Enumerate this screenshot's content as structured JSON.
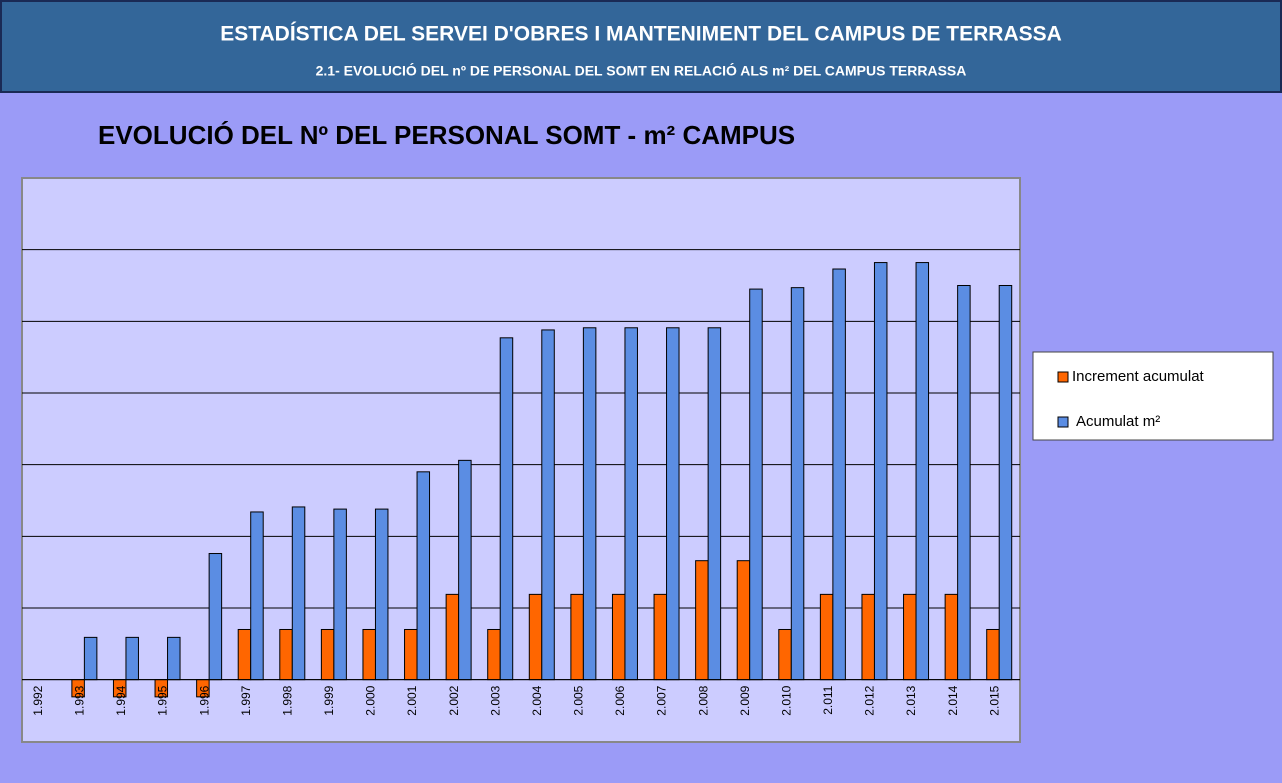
{
  "header": {
    "title": "ESTADÍSTICA DEL SERVEI D'OBRES I MANTENIMENT DEL CAMPUS DE TERRASSA",
    "subtitle": "2.1- EVOLUCIÓ  DEL nº DE PERSONAL DEL SOMT EN RELACIÓ ALS m² DEL CAMPUS TERRASSA"
  },
  "chart_data": {
    "type": "bar",
    "title": "EVOLUCIÓ DEL Nº DEL PERSONAL SOMT - m² CAMPUS",
    "categories": [
      "1.992",
      "1.993",
      "1.994",
      "1.995",
      "1.996",
      "1.997",
      "1.998",
      "1.999",
      "2.000",
      "2.001",
      "2.002",
      "2.003",
      "2.004",
      "2.005",
      "2.006",
      "2.007",
      "2.008",
      "2.009",
      "2.010",
      "2.011",
      "2.012",
      "2.013",
      "2.014",
      "2.015"
    ],
    "series": [
      {
        "name": "Increment  acumulat",
        "color": "#ff6600",
        "values": [
          0,
          -0.24,
          -0.24,
          -0.24,
          -0.24,
          0.7,
          0.7,
          0.7,
          0.7,
          0.7,
          1.19,
          0.7,
          1.19,
          1.19,
          1.19,
          1.19,
          1.66,
          1.66,
          0.7,
          1.19,
          1.19,
          1.19,
          1.19,
          0.7
        ]
      },
      {
        "name": "Acumulat m²",
        "color": "#5b8de3",
        "values": [
          0,
          0.59,
          0.59,
          0.59,
          1.76,
          2.34,
          2.41,
          2.38,
          2.38,
          2.9,
          3.06,
          4.77,
          4.88,
          4.91,
          4.91,
          4.91,
          4.91,
          5.45,
          5.47,
          5.73,
          5.82,
          5.82,
          5.5,
          5.5
        ]
      }
    ],
    "ylim": [
      -0.87,
      7
    ],
    "yticks": [
      0,
      1,
      2,
      3,
      4,
      5,
      6
    ],
    "grid": true,
    "legend": "right"
  }
}
